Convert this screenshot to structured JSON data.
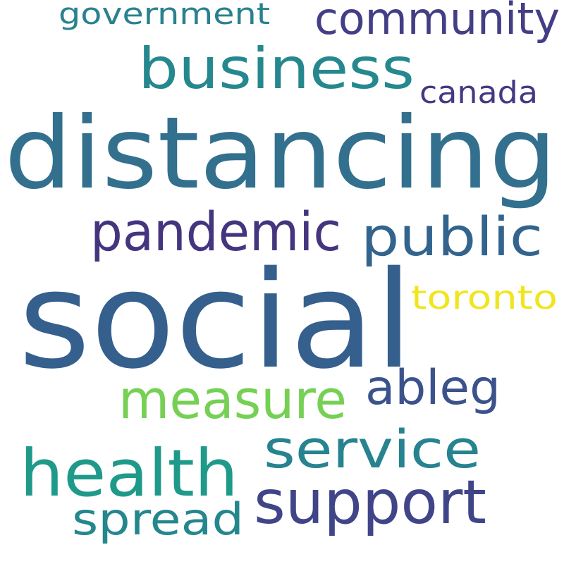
{
  "words": [
    {
      "key": "distancing",
      "text": "distancing",
      "color": "#32708e"
    },
    {
      "key": "social",
      "text": "social",
      "color": "#355f8d"
    },
    {
      "key": "business",
      "text": "business",
      "color": "#25888e"
    },
    {
      "key": "community",
      "text": "community",
      "color": "#433e85"
    },
    {
      "key": "government",
      "text": "government",
      "color": "#2a818e"
    },
    {
      "key": "canada",
      "text": "canada",
      "color": "#443983"
    },
    {
      "key": "pandemic",
      "text": "pandemic",
      "color": "#45357f"
    },
    {
      "key": "public",
      "text": "public",
      "color": "#33648d"
    },
    {
      "key": "toronto",
      "text": "toronto",
      "color": "#f1e51d"
    },
    {
      "key": "measure",
      "text": "measure",
      "color": "#75d054"
    },
    {
      "key": "ableg",
      "text": "ableg",
      "color": "#3b528b"
    },
    {
      "key": "service",
      "text": "service",
      "color": "#26838f"
    },
    {
      "key": "health",
      "text": "health",
      "color": "#1f9a8a"
    },
    {
      "key": "support",
      "text": "support",
      "color": "#404588"
    },
    {
      "key": "spread",
      "text": "spread",
      "color": "#24878e"
    }
  ]
}
